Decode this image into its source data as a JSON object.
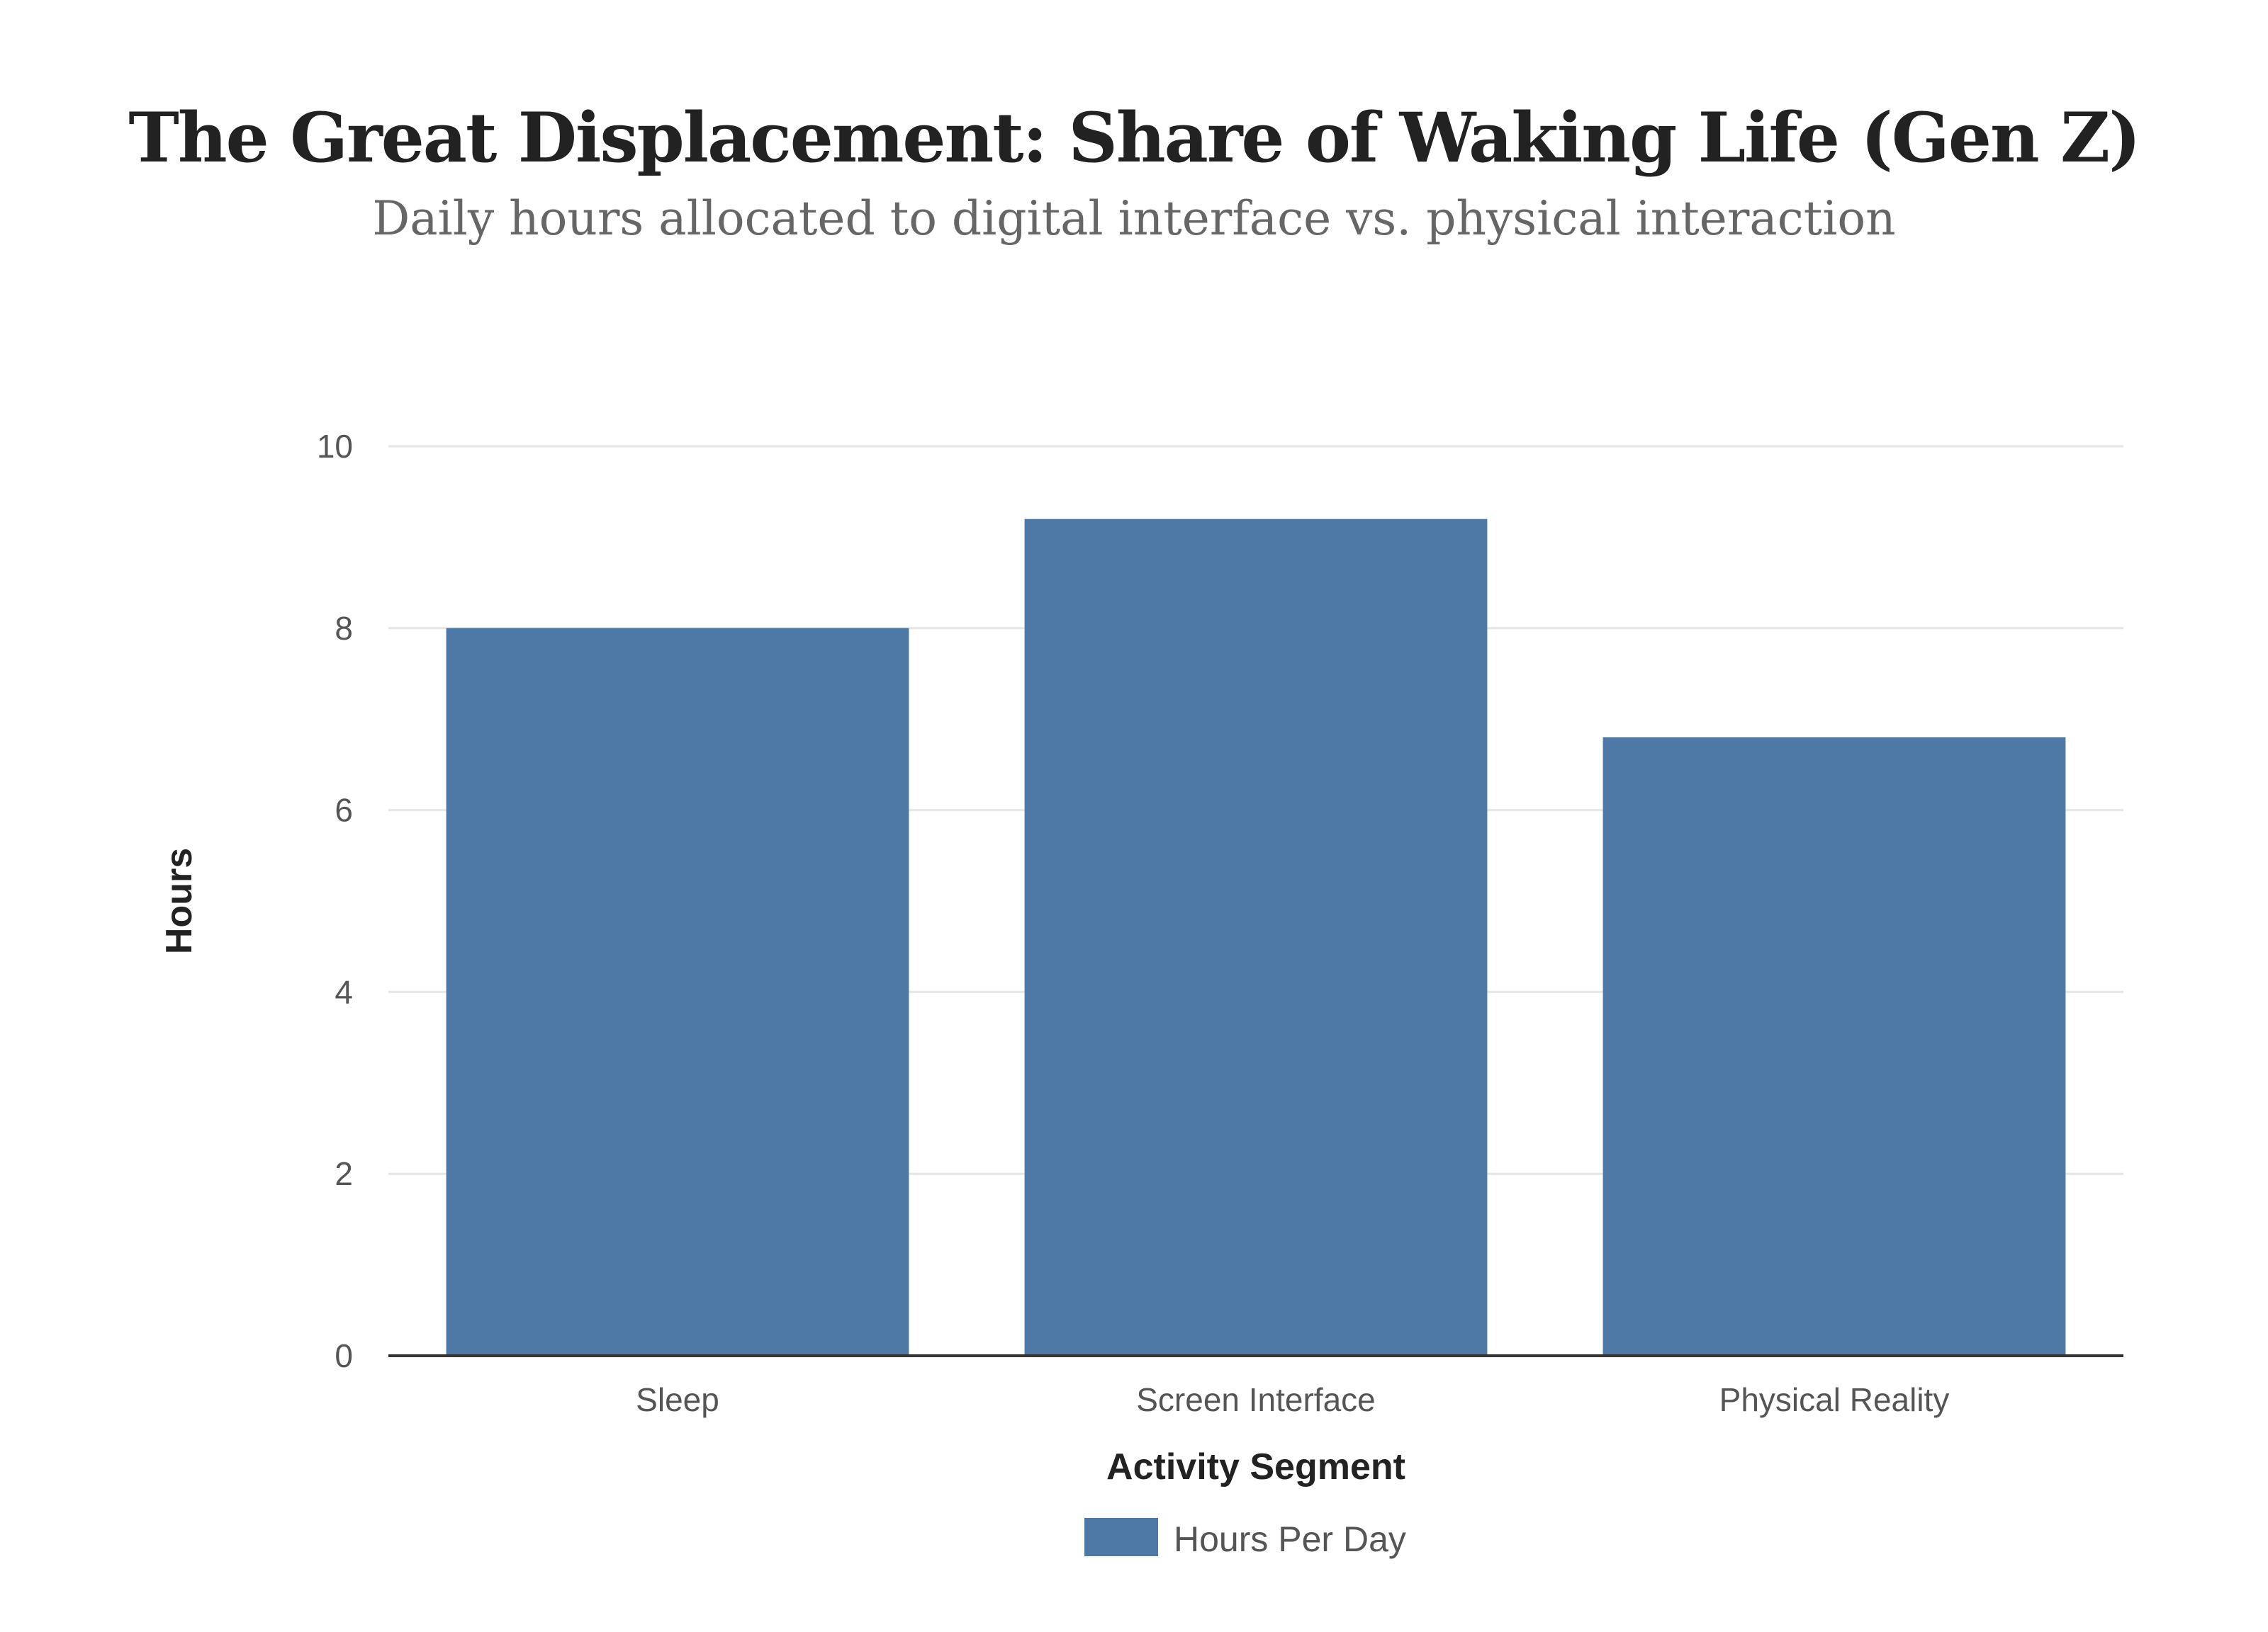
{
  "chart_data": {
    "type": "bar",
    "title": "The Great Displacement: Share of Waking Life (Gen Z)",
    "subtitle": "Daily hours allocated to digital interface vs. physical interaction",
    "xlabel": "Activity Segment",
    "ylabel": "Hours",
    "categories": [
      "Sleep",
      "Screen Interface",
      "Physical Reality"
    ],
    "series": [
      {
        "name": "Hours Per Day",
        "values": [
          8.0,
          9.2,
          6.8
        ]
      }
    ],
    "ylim": [
      0,
      10
    ],
    "yticks": [
      0,
      2,
      4,
      6,
      8,
      10
    ],
    "grid": true,
    "legend_position": "bottom-center",
    "colors": {
      "bar": "#4e79a7",
      "grid": "#e6e6e6",
      "axis": "#333333"
    }
  }
}
